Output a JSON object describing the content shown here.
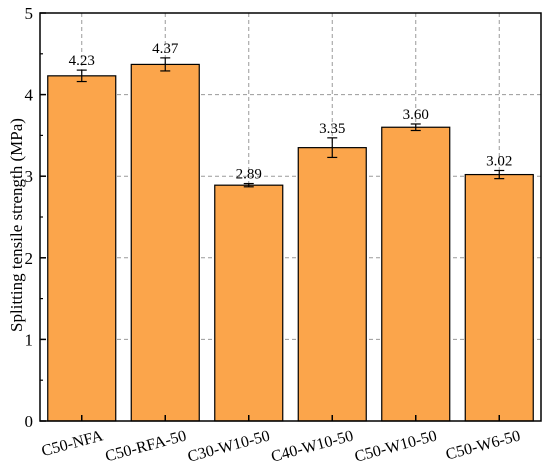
{
  "chart_data": {
    "type": "bar",
    "title": "",
    "xlabel": "",
    "ylabel": "Splitting tensile strength (MPa)",
    "categories": [
      "C50-NFA",
      "C50-RFA-50",
      "C30-W10-50",
      "C40-W10-50",
      "C50-W10-50",
      "C50-W6-50"
    ],
    "values": [
      4.23,
      4.37,
      2.89,
      3.35,
      3.6,
      3.02
    ],
    "value_labels": [
      "4.23",
      "4.37",
      "2.89",
      "3.35",
      "3.60",
      "3.02"
    ],
    "errors": [
      0.07,
      0.08,
      0.02,
      0.12,
      0.04,
      0.05
    ],
    "ylim": [
      0,
      5
    ],
    "yticks": [
      0,
      1,
      2,
      3,
      4,
      5
    ],
    "grid": true,
    "bar_color": "#FBA54B",
    "edge_color": "#000000"
  }
}
